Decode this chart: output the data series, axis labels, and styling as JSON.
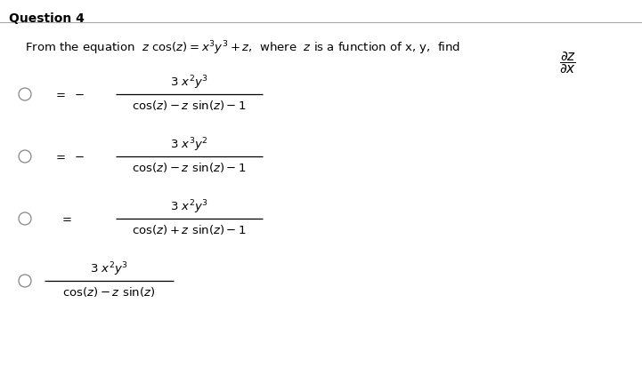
{
  "title": "Question 4",
  "background_color": "#ffffff",
  "text_color": "#000000",
  "question_line1": "From the equation  $z$ $\\mathsf{cos}(z) = x^3y^3 + z$,  where  $z$ is a function of x, y,  find  $\\dfrac{\\partial z}{\\partial x}$",
  "option1_eq": "$= -$",
  "option1_num": "$3\\ x^2y^3$",
  "option1_den": "$\\mathsf{cos}(z) - z\\ \\mathsf{sin}(z) - 1$",
  "option2_eq": "$= -$",
  "option2_num": "$3\\ x^3y^2$",
  "option2_den": "$\\mathsf{cos}(z) - z\\ \\mathsf{sin}(z) - 1$",
  "option3_eq": "$=$",
  "option3_num": "$3\\ x^2y^3$",
  "option3_den": "$\\mathsf{cos}(z) + z\\ \\mathsf{sin}(z) - 1$",
  "option4_num": "$3\\ x^2y^3$",
  "option4_den": "$\\mathsf{cos}(z) - z\\ \\mathsf{sin}(z)$",
  "figsize": [
    7.21,
    4.14
  ],
  "dpi": 100
}
